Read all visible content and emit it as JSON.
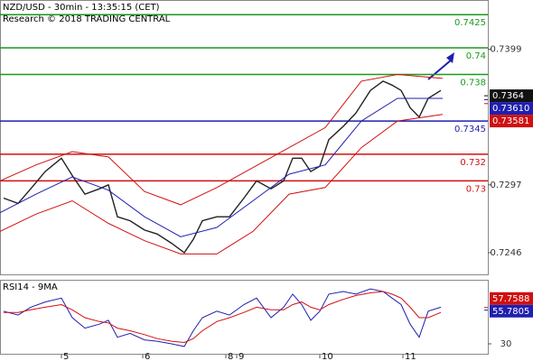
{
  "chart_data": [
    {
      "type": "line",
      "title": "NZD/USD - 30min - 13:35:15 (CET)",
      "subtitle": "Research © 2018 TRADING CENTRAL",
      "xlim": [
        0,
        270
      ],
      "ylim": [
        0.7229,
        0.7436
      ],
      "yticks": [
        0.7399,
        0.7297,
        0.7246
      ],
      "xticks": [
        {
          "value": 34,
          "label": "5"
        },
        {
          "value": 79,
          "label": "6"
        },
        {
          "value": 125,
          "label": "8"
        },
        {
          "value": 131,
          "label": "9"
        },
        {
          "value": 177,
          "label": "10"
        },
        {
          "value": 223,
          "label": "11"
        }
      ],
      "series": [
        {
          "color": "#222222",
          "x": [
            2,
            10,
            17,
            25,
            34,
            40,
            47,
            55,
            60,
            65,
            72,
            80,
            87,
            95,
            102,
            107,
            112,
            120,
            127,
            135,
            142,
            150,
            157,
            162,
            167,
            172,
            177,
            182,
            190,
            197,
            205,
            212,
            217,
            222,
            227,
            232,
            237,
            244
          ],
          "values": [
            0.7287,
            0.7283,
            0.7294,
            0.7307,
            0.7317,
            0.7304,
            0.729,
            0.7294,
            0.7297,
            0.7273,
            0.727,
            0.7263,
            0.726,
            0.7253,
            0.7246,
            0.7256,
            0.727,
            0.7273,
            0.7273,
            0.7287,
            0.73,
            0.7294,
            0.73,
            0.7317,
            0.7317,
            0.7307,
            0.7311,
            0.7331,
            0.7341,
            0.7351,
            0.7368,
            0.7375,
            0.7372,
            0.7368,
            0.7355,
            0.7348,
            0.7362,
            0.7368
          ]
        },
        {
          "color": "#1f1fb0",
          "x": [
            0,
            20,
            40,
            60,
            80,
            100,
            120,
            140,
            160,
            180,
            200,
            220,
            245
          ],
          "values": [
            0.7276,
            0.729,
            0.7303,
            0.7293,
            0.7273,
            0.7258,
            0.7265,
            0.7285,
            0.7305,
            0.7312,
            0.7345,
            0.7362,
            0.7362
          ]
        },
        {
          "color": "#d01010",
          "x": [
            0,
            20,
            40,
            60,
            80,
            100,
            120,
            140,
            160,
            180,
            200,
            220,
            245
          ],
          "values": [
            0.73,
            0.7312,
            0.7322,
            0.7318,
            0.7292,
            0.7282,
            0.7295,
            0.731,
            0.7325,
            0.734,
            0.7375,
            0.738,
            0.7377
          ]
        },
        {
          "color": "#d01010",
          "x": [
            0,
            20,
            40,
            60,
            80,
            100,
            120,
            140,
            160,
            180,
            200,
            220,
            245
          ],
          "values": [
            0.7262,
            0.7275,
            0.7285,
            0.7268,
            0.7255,
            0.7245,
            0.7245,
            0.7262,
            0.729,
            0.7295,
            0.7325,
            0.7345,
            0.735
          ]
        }
      ],
      "levels": [
        {
          "value": 0.7425,
          "color": "#1a9a1a"
        },
        {
          "value": 0.74,
          "color": "#1a9a1a"
        },
        {
          "value": 0.738,
          "color": "#1a9a1a"
        },
        {
          "value": 0.7345,
          "color": "#1f1fb0"
        },
        {
          "value": 0.732,
          "color": "#d01010"
        },
        {
          "value": 0.73,
          "color": "#d01010"
        }
      ],
      "price_labels": [
        {
          "value": 0.7364,
          "color": "#111111"
        },
        {
          "value": {
            "value": 0.7361,
            "label": "0.73610"
          },
          "color": "#1f1fb0"
        },
        {
          "value": 0.73581,
          "color": "#d01010"
        }
      ]
    },
    {
      "type": "line",
      "title": "RSI14 - 9MA",
      "xlim": [
        0,
        270
      ],
      "ylim": [
        21.7,
        78.3
      ],
      "yticks": [
        30
      ],
      "series": [
        {
          "color": "#1f1fb0",
          "x": [
            2,
            10,
            17,
            25,
            34,
            40,
            47,
            55,
            60,
            65,
            72,
            80,
            87,
            95,
            102,
            107,
            112,
            120,
            127,
            135,
            142,
            150,
            157,
            162,
            167,
            172,
            177,
            182,
            190,
            197,
            205,
            212,
            217,
            222,
            227,
            232,
            237,
            244
          ],
          "values": [
            55,
            52,
            58,
            62,
            65,
            50,
            42,
            45,
            48,
            35,
            38,
            33,
            32,
            30,
            28,
            40,
            50,
            55,
            52,
            60,
            65,
            50,
            58,
            68,
            60,
            48,
            55,
            68,
            70,
            68,
            72,
            70,
            65,
            60,
            45,
            35,
            55,
            58
          ]
        },
        {
          "color": "#d01010",
          "x": [
            2,
            10,
            17,
            25,
            34,
            40,
            47,
            55,
            60,
            65,
            72,
            80,
            87,
            95,
            102,
            107,
            112,
            120,
            127,
            135,
            142,
            150,
            157,
            162,
            167,
            172,
            177,
            182,
            190,
            197,
            205,
            212,
            217,
            222,
            227,
            232,
            237,
            244
          ],
          "values": [
            54,
            54,
            56,
            58,
            60,
            56,
            50,
            47,
            46,
            42,
            40,
            37,
            34,
            32,
            31,
            34,
            40,
            47,
            50,
            54,
            58,
            56,
            56,
            60,
            62,
            58,
            56,
            60,
            64,
            67,
            69,
            70,
            68,
            65,
            58,
            50,
            50,
            54
          ]
        }
      ],
      "price_labels": [
        {
          "value": 57.7588,
          "color": "#d01010"
        },
        {
          "value": 55.7805,
          "color": "#1f1fb0"
        }
      ]
    }
  ]
}
